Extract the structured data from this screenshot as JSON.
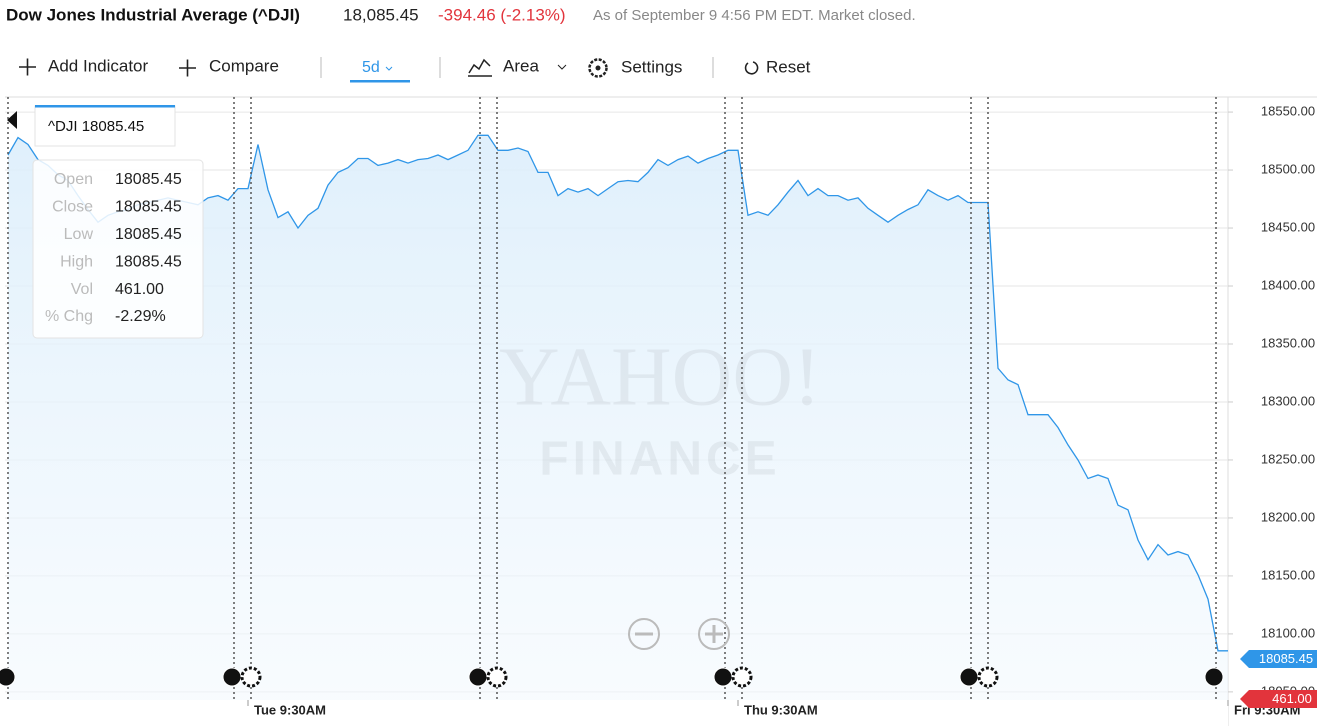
{
  "header": {
    "title": "Dow Jones Industrial Average (^DJI)",
    "price": "18,085.45",
    "change": "-394.46 (-2.13%)",
    "status": "As of September 9 4:56 PM EDT. Market closed."
  },
  "toolbar": {
    "add_indicator": "Add Indicator",
    "compare": "Compare",
    "range": "5d",
    "chart_type": "Area",
    "settings": "Settings",
    "reset": "Reset"
  },
  "watermark": {
    "line1": "YAHOO!",
    "line2": "FINANCE"
  },
  "legend_box": "^DJI 18085.45",
  "tooltip": {
    "rows": [
      [
        "Open",
        "18085.45"
      ],
      [
        "Close",
        "18085.45"
      ],
      [
        "Low",
        "18085.45"
      ],
      [
        "High",
        "18085.45"
      ],
      [
        "Vol",
        "461.00"
      ],
      [
        "% Chg",
        "-2.29%"
      ]
    ]
  },
  "price_tag": "18085.45",
  "volume_tag": "461.00",
  "chart_data": {
    "type": "area",
    "color": "#2f96e8",
    "grid": true,
    "ylim": [
      18043,
      18563
    ],
    "yticks": [
      {
        "value": 18550,
        "label": "18550.00"
      },
      {
        "value": 18500,
        "label": "18500.00"
      },
      {
        "value": 18450,
        "label": "18450.00"
      },
      {
        "value": 18400,
        "label": "18400.00"
      },
      {
        "value": 18350,
        "label": "18350.00"
      },
      {
        "value": 18300,
        "label": "18300.00"
      },
      {
        "value": 18250,
        "label": "18250.00"
      },
      {
        "value": 18200,
        "label": "18200.00"
      },
      {
        "value": 18150,
        "label": "18150.00"
      },
      {
        "value": 18100,
        "label": "18100.00"
      },
      {
        "value": 18050,
        "label": "18050.00"
      }
    ],
    "categories": [
      null,
      null,
      null,
      null,
      null,
      null,
      null,
      null,
      null,
      null,
      null,
      null,
      null,
      null,
      null,
      null,
      null,
      null,
      null,
      null,
      null,
      null,
      null,
      null,
      "Tue 9:30AM",
      null,
      null,
      null,
      null,
      null,
      null,
      null,
      null,
      null,
      null,
      null,
      null,
      null,
      null,
      null,
      null,
      null,
      null,
      null,
      null,
      null,
      null,
      null,
      null,
      null,
      null,
      null,
      null,
      null,
      null,
      null,
      null,
      null,
      null,
      null,
      null,
      null,
      null,
      null,
      null,
      null,
      null,
      null,
      null,
      null,
      null,
      null,
      null,
      "Thu 9:30AM",
      null,
      null,
      null,
      null,
      null,
      null,
      null,
      null,
      null,
      null,
      null,
      null,
      null,
      null,
      null,
      null,
      null,
      null,
      null,
      null,
      null,
      null,
      null,
      null,
      null,
      null,
      null,
      null,
      null,
      null,
      null,
      null,
      null,
      null,
      null,
      null,
      null,
      null,
      null,
      null,
      null,
      null,
      null,
      null,
      null,
      null,
      null,
      null,
      "Fri 9:30AM"
    ],
    "values": [
      18513,
      18528,
      18522,
      18509,
      18504,
      18496,
      18491,
      18478,
      18466,
      18455,
      18461,
      18464,
      18466,
      18470,
      18472,
      18474,
      18476,
      18474,
      18472,
      18470,
      18476,
      18478,
      18474,
      18484,
      18484,
      18522,
      18483,
      18459,
      18464,
      18450,
      18461,
      18467,
      18487,
      18498,
      18502,
      18510,
      18510,
      18504,
      18506,
      18509,
      18506,
      18509,
      18510,
      18513,
      18509,
      18513,
      18517,
      18530,
      18530,
      18517,
      18517,
      18519,
      18516,
      18498,
      18498,
      18478,
      18484,
      18481,
      18484,
      18478,
      18484,
      18490,
      18491,
      18490,
      18498,
      18509,
      18504,
      18509,
      18512,
      18506,
      18510,
      18513,
      18517,
      18517,
      18461,
      18464,
      18461,
      18470,
      18481,
      18491,
      18478,
      18484,
      18478,
      18478,
      18474,
      18476,
      18467,
      18461,
      18455,
      18461,
      18466,
      18470,
      18483,
      18478,
      18474,
      18478,
      18472,
      18472,
      18472,
      18329,
      18319,
      18315,
      18289,
      18289,
      18289,
      18278,
      18263,
      18250,
      18234,
      18237,
      18234,
      18211,
      18207,
      18181,
      18164,
      18177,
      18168,
      18171,
      18168,
      18151,
      18130,
      18085.45,
      18085.45
    ]
  }
}
